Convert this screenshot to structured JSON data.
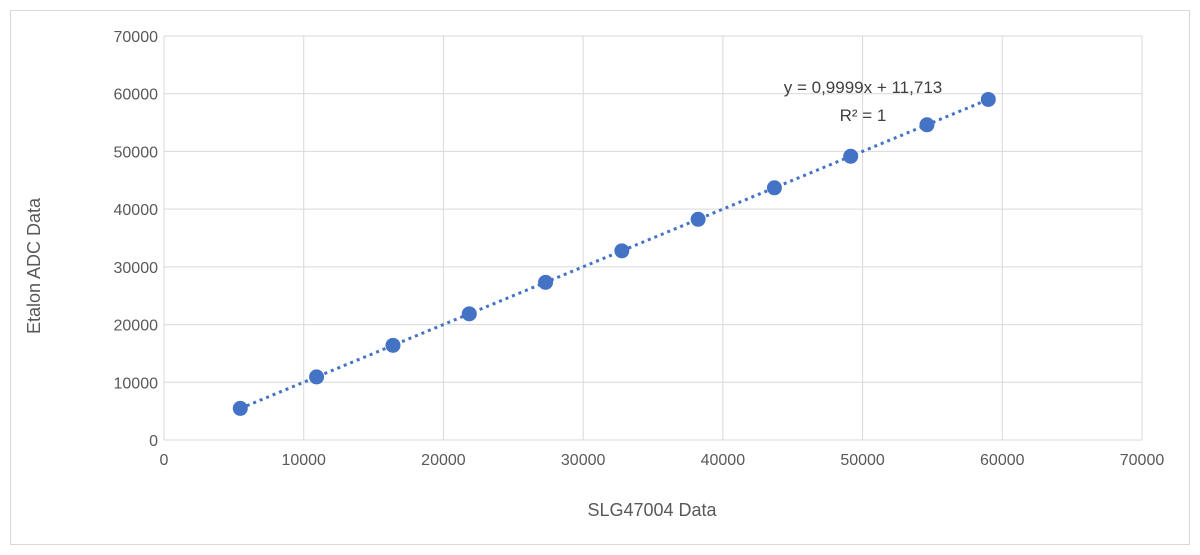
{
  "chart_data": {
    "type": "scatter",
    "title": "",
    "xlabel": "SLG47004 Data",
    "ylabel": "Etalon ADC Data",
    "xlim": [
      0,
      70000
    ],
    "ylim": [
      0,
      70000
    ],
    "x_ticks": [
      "0",
      "10000",
      "20000",
      "30000",
      "40000",
      "50000",
      "60000",
      "70000"
    ],
    "y_ticks": [
      "0",
      "10000",
      "20000",
      "30000",
      "40000",
      "50000",
      "60000",
      "70000"
    ],
    "grid": true,
    "legend": "none",
    "colors": {
      "marker": "#4472C4",
      "trendline": "#4472C4",
      "gridline": "#D9D9D9",
      "frame": "#D9D9D9",
      "text": "#595959"
    },
    "series": [
      {
        "x": [
          5460,
          10920,
          16390,
          21850,
          27310,
          32770,
          38230,
          43690,
          49150,
          54610,
          59000
        ],
        "y": [
          5470,
          10930,
          16400,
          21860,
          27320,
          32780,
          38240,
          43700,
          49160,
          54620,
          59000
        ]
      }
    ],
    "trendline": {
      "type": "linear",
      "style": "dotted",
      "slope": 0.9999,
      "intercept": 11.713,
      "x_range": [
        5460,
        59000
      ],
      "equation_label": "y = 0,9999x + 11,713",
      "r2_label": "R² = 1"
    }
  }
}
